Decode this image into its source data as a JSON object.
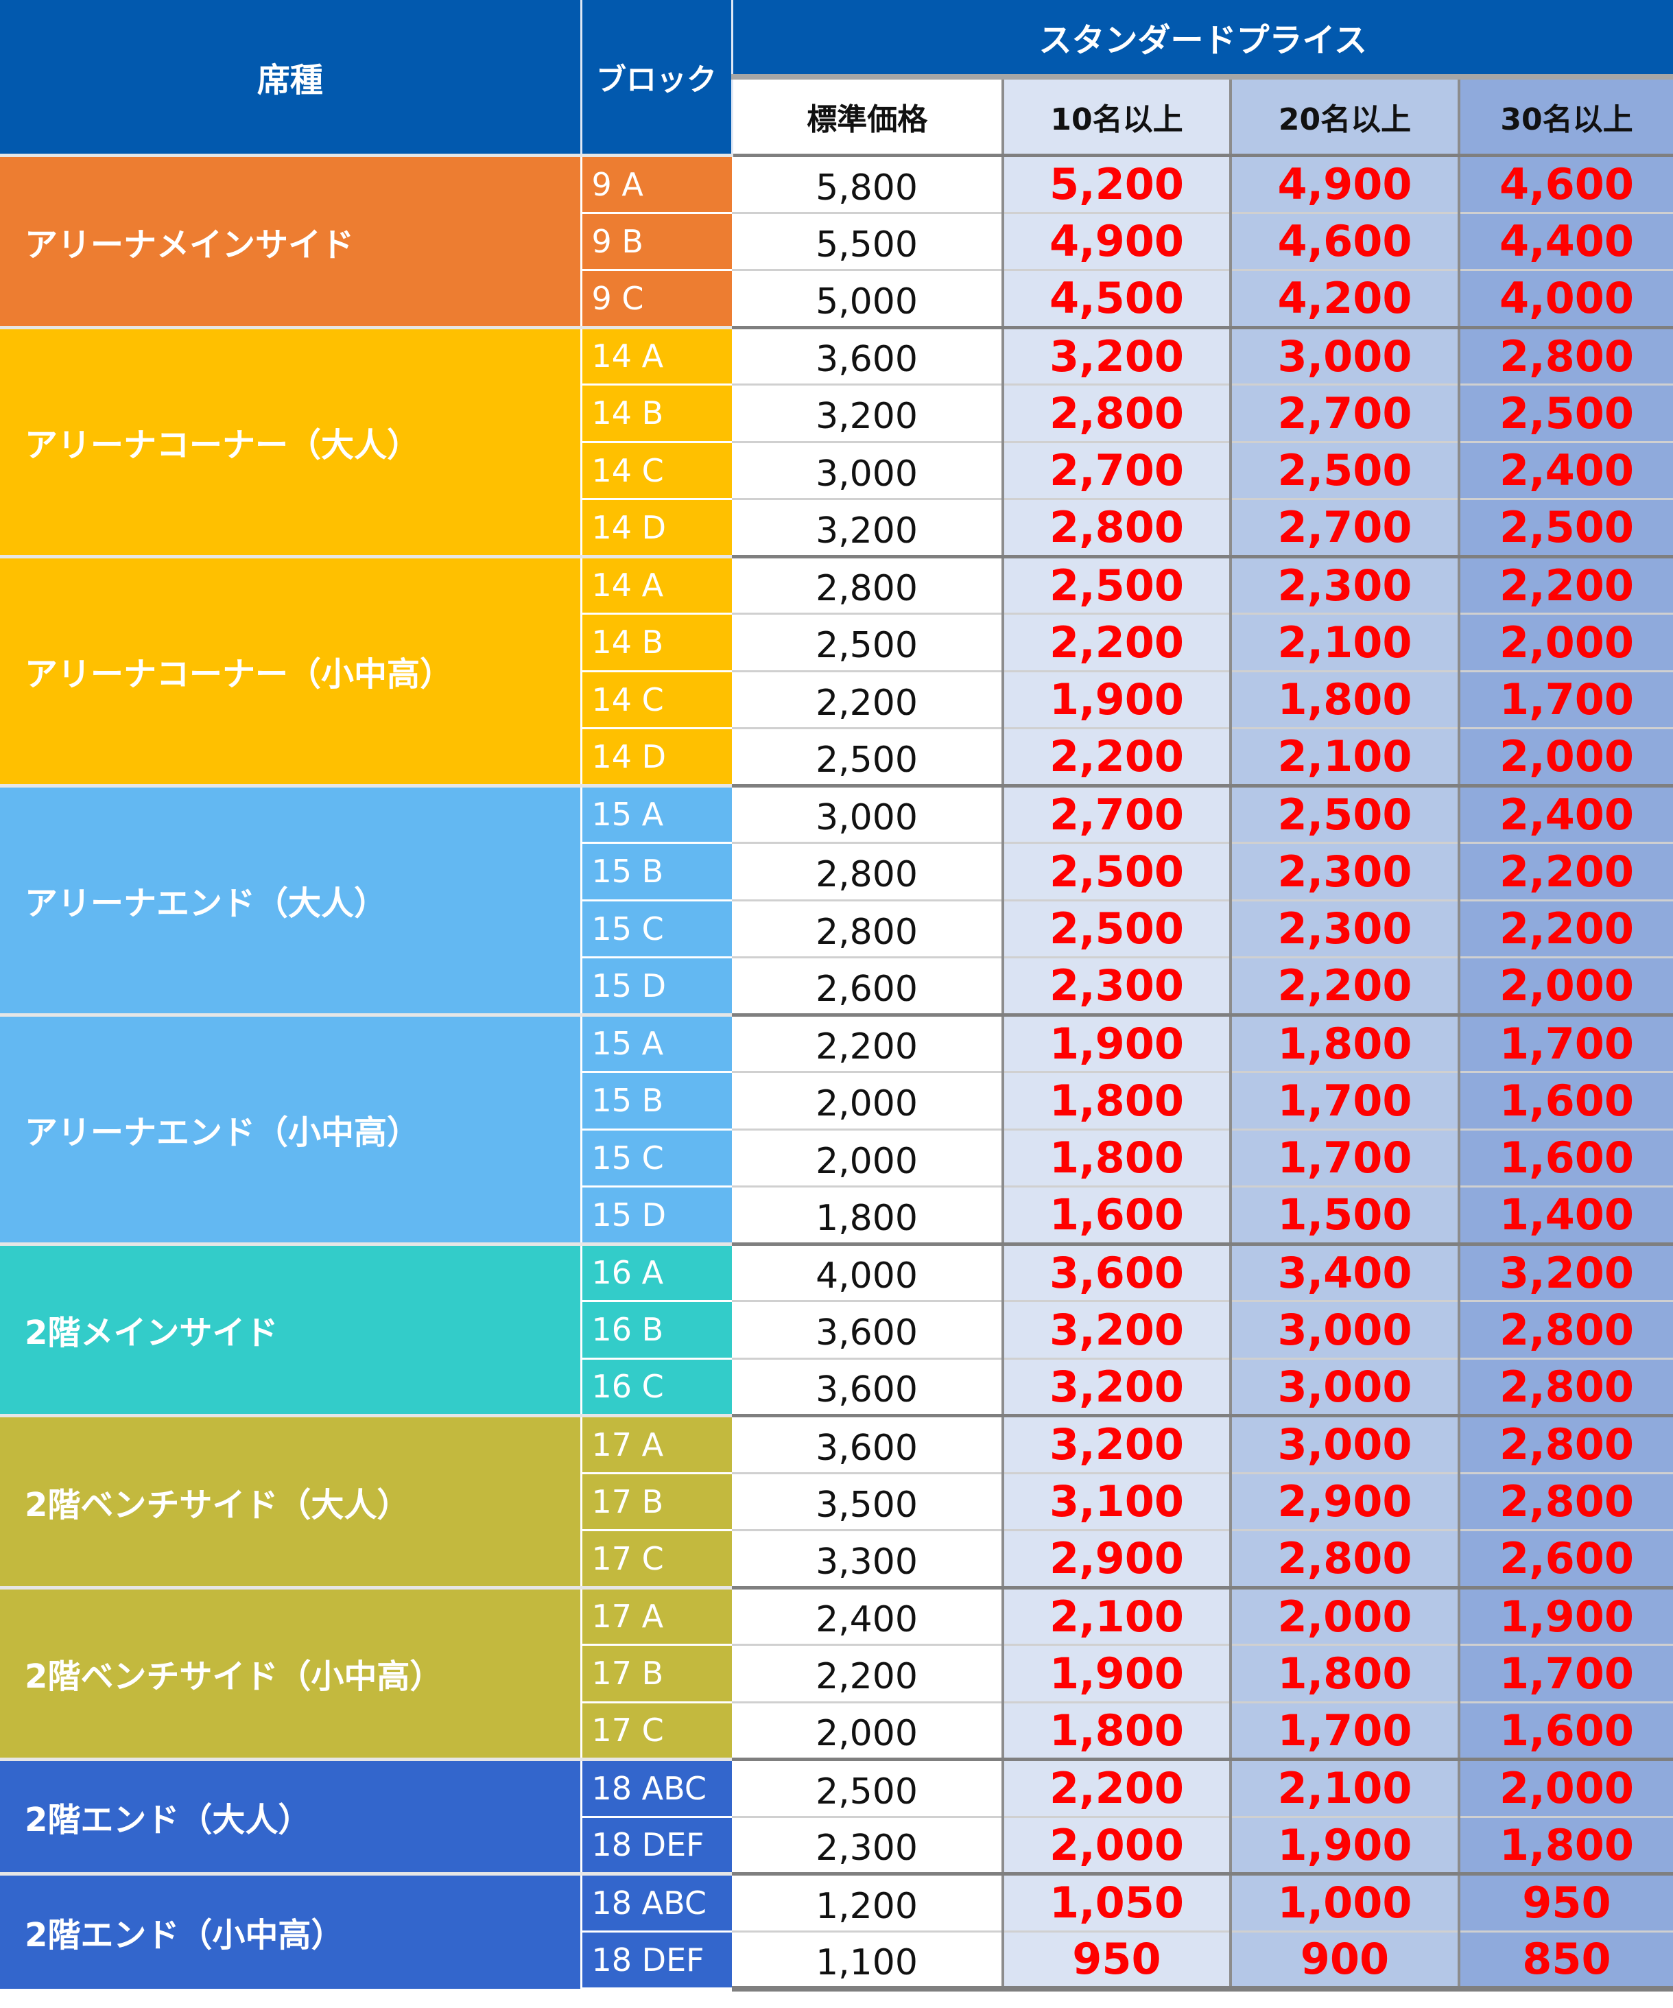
{
  "header": {
    "seat_type": "席種",
    "block": "ブロック",
    "standard_price_group": "スタンダードプライス",
    "columns": [
      "標準価格",
      "10名以上",
      "20名以上",
      "30名以上"
    ]
  },
  "colors": {
    "header": "#0259ae",
    "discount_text": "#ff0000",
    "col_10": "#dae3f3",
    "col_20": "#b4c7e7",
    "col_30": "#8faadc"
  },
  "groups": [
    {
      "name": "アリーナメインサイド",
      "color": "#ed7d31",
      "rows": [
        {
          "block": "9 A",
          "prices": [
            "5,800",
            "5,200",
            "4,900",
            "4,600"
          ]
        },
        {
          "block": "9 B",
          "prices": [
            "5,500",
            "4,900",
            "4,600",
            "4,400"
          ]
        },
        {
          "block": "9 C",
          "prices": [
            "5,000",
            "4,500",
            "4,200",
            "4,000"
          ]
        }
      ]
    },
    {
      "name": "アリーナコーナー（大人）",
      "color": "#ffc000",
      "rows": [
        {
          "block": "14 A",
          "prices": [
            "3,600",
            "3,200",
            "3,000",
            "2,800"
          ]
        },
        {
          "block": "14 B",
          "prices": [
            "3,200",
            "2,800",
            "2,700",
            "2,500"
          ]
        },
        {
          "block": "14 C",
          "prices": [
            "3,000",
            "2,700",
            "2,500",
            "2,400"
          ]
        },
        {
          "block": "14 D",
          "prices": [
            "3,200",
            "2,800",
            "2,700",
            "2,500"
          ]
        }
      ]
    },
    {
      "name": "アリーナコーナー（小中高）",
      "color": "#ffc000",
      "rows": [
        {
          "block": "14 A",
          "prices": [
            "2,800",
            "2,500",
            "2,300",
            "2,200"
          ]
        },
        {
          "block": "14 B",
          "prices": [
            "2,500",
            "2,200",
            "2,100",
            "2,000"
          ]
        },
        {
          "block": "14 C",
          "prices": [
            "2,200",
            "1,900",
            "1,800",
            "1,700"
          ]
        },
        {
          "block": "14 D",
          "prices": [
            "2,500",
            "2,200",
            "2,100",
            "2,000"
          ]
        }
      ]
    },
    {
      "name": "アリーナエンド（大人）",
      "color": "#63b8f2",
      "rows": [
        {
          "block": "15 A",
          "prices": [
            "3,000",
            "2,700",
            "2,500",
            "2,400"
          ]
        },
        {
          "block": "15 B",
          "prices": [
            "2,800",
            "2,500",
            "2,300",
            "2,200"
          ]
        },
        {
          "block": "15 C",
          "prices": [
            "2,800",
            "2,500",
            "2,300",
            "2,200"
          ]
        },
        {
          "block": "15 D",
          "prices": [
            "2,600",
            "2,300",
            "2,200",
            "2,000"
          ]
        }
      ]
    },
    {
      "name": "アリーナエンド（小中高）",
      "color": "#63b8f2",
      "rows": [
        {
          "block": "15 A",
          "prices": [
            "2,200",
            "1,900",
            "1,800",
            "1,700"
          ]
        },
        {
          "block": "15 B",
          "prices": [
            "2,000",
            "1,800",
            "1,700",
            "1,600"
          ]
        },
        {
          "block": "15 C",
          "prices": [
            "2,000",
            "1,800",
            "1,700",
            "1,600"
          ]
        },
        {
          "block": "15 D",
          "prices": [
            "1,800",
            "1,600",
            "1,500",
            "1,400"
          ]
        }
      ]
    },
    {
      "name": "2階メインサイド",
      "color": "#33ccc9",
      "rows": [
        {
          "block": "16 A",
          "prices": [
            "4,000",
            "3,600",
            "3,400",
            "3,200"
          ]
        },
        {
          "block": "16 B",
          "prices": [
            "3,600",
            "3,200",
            "3,000",
            "2,800"
          ]
        },
        {
          "block": "16 C",
          "prices": [
            "3,600",
            "3,200",
            "3,000",
            "2,800"
          ]
        }
      ]
    },
    {
      "name": "2階ベンチサイド（大人）",
      "color": "#c3b93e",
      "rows": [
        {
          "block": "17 A",
          "prices": [
            "3,600",
            "3,200",
            "3,000",
            "2,800"
          ]
        },
        {
          "block": "17 B",
          "prices": [
            "3,500",
            "3,100",
            "2,900",
            "2,800"
          ]
        },
        {
          "block": "17 C",
          "prices": [
            "3,300",
            "2,900",
            "2,800",
            "2,600"
          ]
        }
      ]
    },
    {
      "name": "2階ベンチサイド（小中高）",
      "color": "#c3b93e",
      "rows": [
        {
          "block": "17 A",
          "prices": [
            "2,400",
            "2,100",
            "2,000",
            "1,900"
          ]
        },
        {
          "block": "17 B",
          "prices": [
            "2,200",
            "1,900",
            "1,800",
            "1,700"
          ]
        },
        {
          "block": "17 C",
          "prices": [
            "2,000",
            "1,800",
            "1,700",
            "1,600"
          ]
        }
      ]
    },
    {
      "name": "2階エンド（大人）",
      "color": "#3366cc",
      "rows": [
        {
          "block": "18 ABC",
          "prices": [
            "2,500",
            "2,200",
            "2,100",
            "2,000"
          ]
        },
        {
          "block": "18 DEF",
          "prices": [
            "2,300",
            "2,000",
            "1,900",
            "1,800"
          ]
        }
      ]
    },
    {
      "name": "2階エンド（小中高）",
      "color": "#3366cc",
      "rows": [
        {
          "block": "18 ABC",
          "prices": [
            "1,200",
            "1,050",
            "1,000",
            "950"
          ]
        },
        {
          "block": "18 DEF",
          "prices": [
            "1,100",
            "950",
            "900",
            "850"
          ]
        }
      ]
    }
  ]
}
